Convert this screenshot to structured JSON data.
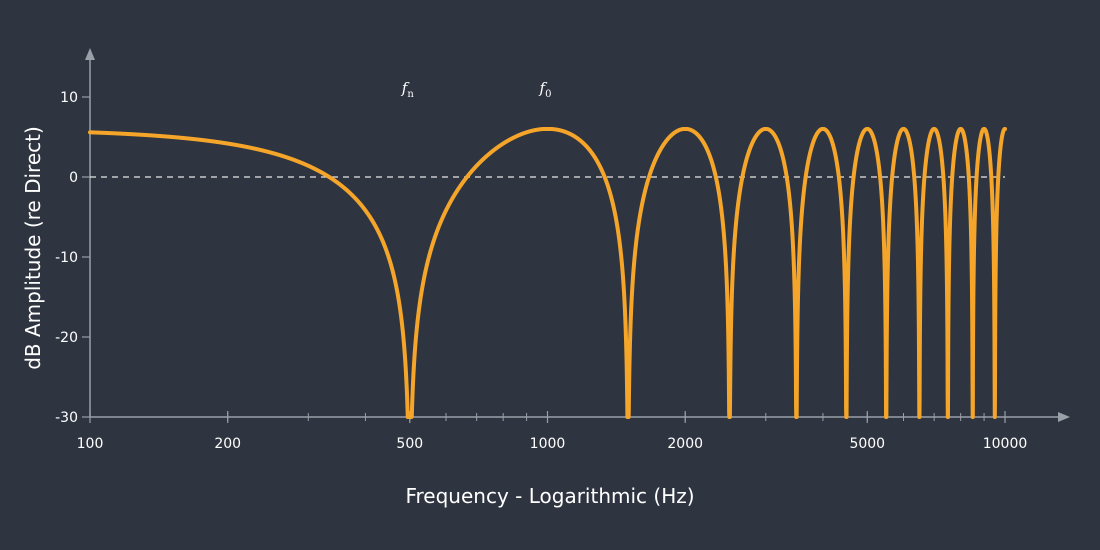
{
  "chart_data": {
    "type": "line",
    "title": "",
    "xlabel": "Frequency - Logarithmic (Hz)",
    "ylabel": "dB Amplitude (re Direct)",
    "x_scale": "log",
    "xlim": [
      100,
      10000
    ],
    "ylim": [
      -30,
      10
    ],
    "x_ticks": [
      100,
      200,
      500,
      1000,
      2000,
      5000,
      10000
    ],
    "x_tick_labels": [
      "100",
      "200",
      "500",
      "1000",
      "2000",
      "5000",
      "10000"
    ],
    "y_ticks": [
      10,
      0,
      -10,
      -20,
      -30
    ],
    "y_tick_labels": [
      "10",
      "0",
      "-10",
      "-20",
      "-30"
    ],
    "reference_line": {
      "y": 0,
      "style": "dashed"
    },
    "series": [
      {
        "description": "comb filter response, peaks at +6 dB and nulls at odd multiples of 500 Hz",
        "color": "#f5a62a",
        "peak_db": 6,
        "first_null_hz": 500,
        "null_frequencies_hz": [
          500,
          1500,
          2500,
          3500,
          4500,
          5500,
          6500,
          7500,
          8500,
          9500
        ],
        "peak_frequencies_hz": [
          1000,
          2000,
          3000,
          4000,
          5000,
          6000,
          7000,
          8000,
          9000,
          10000
        ]
      }
    ],
    "annotations": [
      {
        "main": "f",
        "sub": "n",
        "x": 500,
        "y": 11.5
      },
      {
        "main": "f",
        "sub": "0",
        "x": 1000,
        "y": 11.5
      }
    ],
    "grid": false,
    "legend": "none"
  },
  "colors": {
    "background": "#2f3540",
    "axis": "#9aa0a8",
    "curve": "#f5a62a",
    "reference": "#e8e8e8"
  }
}
